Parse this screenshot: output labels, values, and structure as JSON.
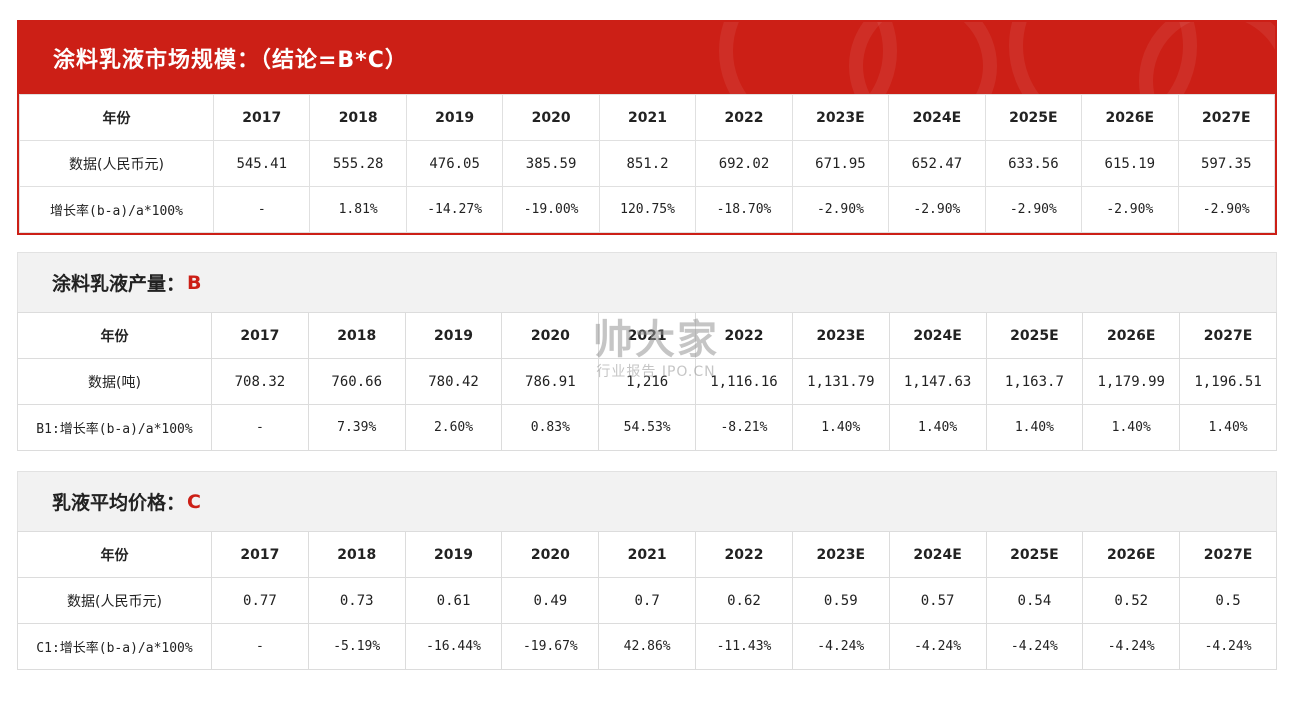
{
  "table1": {
    "title": "涂料乳液市场规模：（结论=B*C）",
    "years": [
      "年份",
      "2017",
      "2018",
      "2019",
      "2020",
      "2021",
      "2022",
      "2023E",
      "2024E",
      "2025E",
      "2026E",
      "2027E"
    ],
    "values": [
      "数据(人民币元)",
      "545.41",
      "555.28",
      "476.05",
      "385.59",
      "851.2",
      "692.02",
      "671.95",
      "652.47",
      "633.56",
      "615.19",
      "597.35"
    ],
    "rates": [
      "增长率(b-a)/a*100%",
      "-",
      "1.81%",
      "-14.27%",
      "-19.00%",
      "120.75%",
      "-18.70%",
      "-2.90%",
      "-2.90%",
      "-2.90%",
      "-2.90%",
      "-2.90%"
    ]
  },
  "table2": {
    "title": "涂料乳液产量：",
    "tag": "B",
    "years": [
      "年份",
      "2017",
      "2018",
      "2019",
      "2020",
      "2021",
      "2022",
      "2023E",
      "2024E",
      "2025E",
      "2026E",
      "2027E"
    ],
    "values": [
      "数据(吨)",
      "708.32",
      "760.66",
      "780.42",
      "786.91",
      "1,216",
      "1,116.16",
      "1,131.79",
      "1,147.63",
      "1,163.7",
      "1,179.99",
      "1,196.51"
    ],
    "rates": [
      "B1:增长率(b-a)/a*100%",
      "-",
      "7.39%",
      "2.60%",
      "0.83%",
      "54.53%",
      "-8.21%",
      "1.40%",
      "1.40%",
      "1.40%",
      "1.40%",
      "1.40%"
    ]
  },
  "table3": {
    "title": "乳液平均价格：",
    "tag": "C",
    "years": [
      "年份",
      "2017",
      "2018",
      "2019",
      "2020",
      "2021",
      "2022",
      "2023E",
      "2024E",
      "2025E",
      "2026E",
      "2027E"
    ],
    "values": [
      "数据(人民币元)",
      "0.77",
      "0.73",
      "0.61",
      "0.49",
      "0.7",
      "0.62",
      "0.59",
      "0.57",
      "0.54",
      "0.52",
      "0.5"
    ],
    "rates": [
      "C1:增长率(b-a)/a*100%",
      "-",
      "-5.19%",
      "-16.44%",
      "-19.67%",
      "42.86%",
      "-11.43%",
      "-4.24%",
      "-4.24%",
      "-4.24%",
      "-4.24%",
      "-4.24%"
    ]
  },
  "watermark": {
    "main": "帅大家",
    "sub": "行业报告 IPO.CN"
  },
  "colors": {
    "accent": "#cc1f16",
    "header_gray": "#f2f2f2"
  }
}
